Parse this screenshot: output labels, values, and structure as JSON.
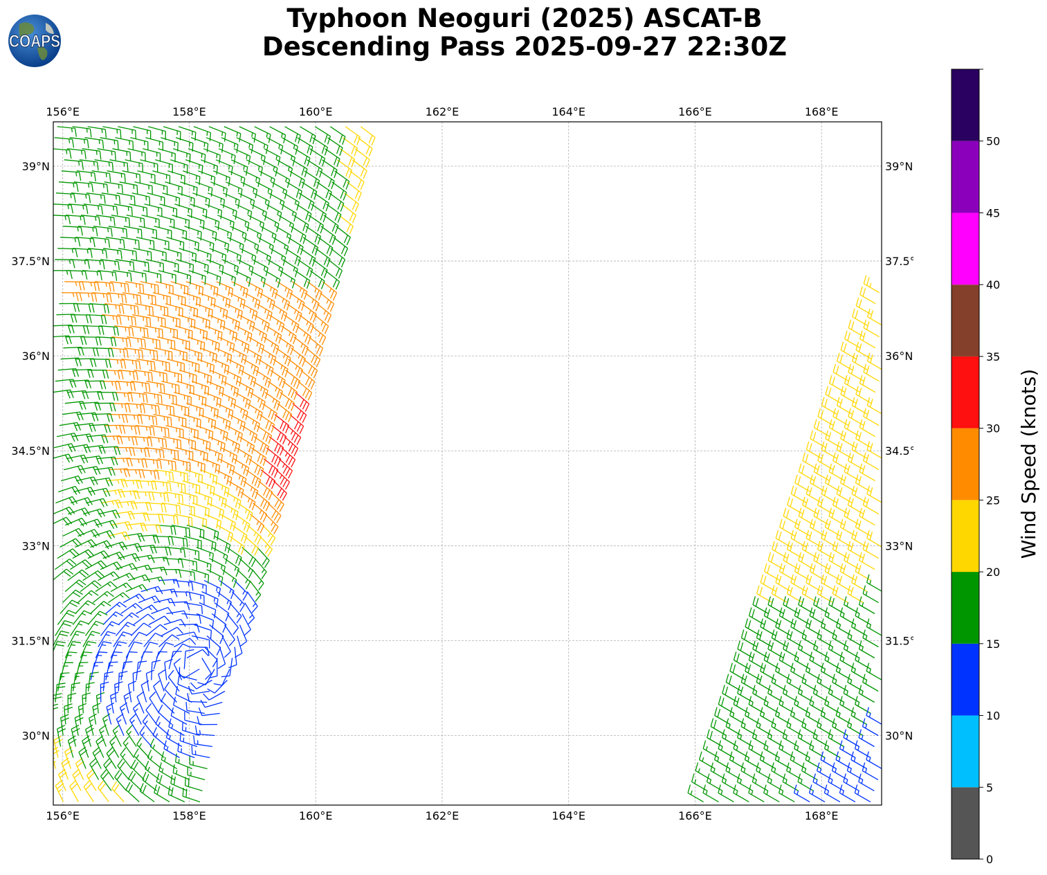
{
  "logo": {
    "text": "COAPS",
    "icon": "globe-icon"
  },
  "title": {
    "line1": "Typhoon Neoguri (2025) ASCAT-B",
    "line2": "Descending Pass 2025-09-27 22:30Z"
  },
  "map": {
    "lon_range": [
      155.85,
      168.95
    ],
    "lat_range": [
      28.9,
      39.7
    ],
    "lon_ticks": [
      {
        "value": 156,
        "label": "156°E"
      },
      {
        "value": 158,
        "label": "158°E"
      },
      {
        "value": 160,
        "label": "160°E"
      },
      {
        "value": 162,
        "label": "162°E"
      },
      {
        "value": 164,
        "label": "164°E"
      },
      {
        "value": 166,
        "label": "166°E"
      },
      {
        "value": 168,
        "label": "168°E"
      }
    ],
    "lat_ticks": [
      {
        "value": 39,
        "label": "39°N"
      },
      {
        "value": 37.5,
        "label": "37.5°N"
      },
      {
        "value": 36,
        "label": "36°N"
      },
      {
        "value": 34.5,
        "label": "34.5°N"
      },
      {
        "value": 33,
        "label": "33°N"
      },
      {
        "value": 31.5,
        "label": "31.5°N"
      },
      {
        "value": 30,
        "label": "30°N"
      }
    ],
    "grid": true
  },
  "colorbar": {
    "label": "Wind Speed (knots)",
    "bins": [
      {
        "min": 0,
        "max": 5,
        "color": "#555555"
      },
      {
        "min": 5,
        "max": 10,
        "color": "#00bfff"
      },
      {
        "min": 10,
        "max": 15,
        "color": "#0033ff"
      },
      {
        "min": 15,
        "max": 20,
        "color": "#009600"
      },
      {
        "min": 20,
        "max": 25,
        "color": "#ffd700"
      },
      {
        "min": 25,
        "max": 30,
        "color": "#ff8c00"
      },
      {
        "min": 30,
        "max": 35,
        "color": "#ff1010"
      },
      {
        "min": 35,
        "max": 40,
        "color": "#84402a"
      },
      {
        "min": 40,
        "max": 45,
        "color": "#ff00ff"
      },
      {
        "min": 45,
        "max": 50,
        "color": "#8b00bb"
      },
      {
        "min": 50,
        "max": 55,
        "color": "#2a0060"
      }
    ],
    "ticks": [
      {
        "value": 0,
        "label": "0"
      },
      {
        "value": 5,
        "label": "5"
      },
      {
        "value": 10,
        "label": "10"
      },
      {
        "value": 15,
        "label": "15"
      },
      {
        "value": 20,
        "label": "20"
      },
      {
        "value": 25,
        "label": "25"
      },
      {
        "value": 30,
        "label": "30"
      },
      {
        "value": 35,
        "label": "35"
      },
      {
        "value": 40,
        "label": "40"
      },
      {
        "value": 45,
        "label": "45"
      },
      {
        "value": 50,
        "label": "50"
      }
    ]
  },
  "swaths": [
    {
      "name": "west-swath",
      "inner_edge": [
        [
          156.8,
          39.7
        ],
        [
          160.75,
          39.7
        ],
        [
          159.1,
          33.0
        ],
        [
          158.2,
          29.0
        ]
      ],
      "outer_edge": [
        [
          155.85,
          39.7
        ],
        [
          155.85,
          29.0
        ]
      ]
    },
    {
      "name": "east-swath",
      "inner_edge": [
        [
          166.1,
          29.0
        ],
        [
          168.9,
          37.1
        ]
      ],
      "outer_edge": [
        [
          168.95,
          37.1
        ],
        [
          168.95,
          29.0
        ]
      ]
    }
  ]
}
